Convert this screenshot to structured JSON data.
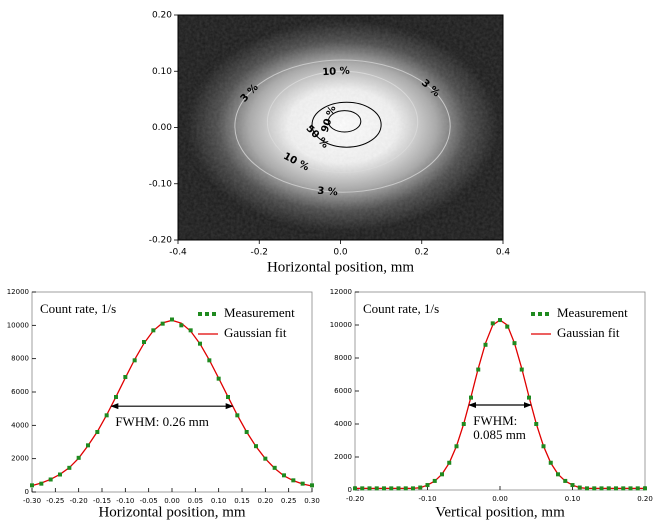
{
  "chart_data": [
    {
      "type": "heatmap",
      "xlabel": "Horizontal position, mm",
      "xlim": [
        -0.4,
        0.4
      ],
      "ylim": [
        -0.2,
        0.2
      ],
      "xticks": [
        -0.4,
        -0.2,
        {
          "value": 0,
          "label": "0.0"
        },
        0.2,
        0.4
      ],
      "yticks": [
        {
          "value": -0.2,
          "label": "-0.20"
        },
        {
          "value": -0.1,
          "label": "-0.10"
        },
        {
          "value": 0,
          "label": "0.00"
        },
        {
          "value": 0.1,
          "label": "0.10"
        },
        {
          "value": 0.2,
          "label": "0.20"
        }
      ],
      "contours": [
        {
          "value": 3,
          "label": "3 %",
          "color": "#c8c8c8",
          "x": [
            -0.26,
            0.27
          ],
          "y": [
            -0.115,
            0.12
          ]
        },
        {
          "value": 10,
          "label": "10 %",
          "color": "#d8d8d8",
          "x": [
            -0.18,
            0.19
          ],
          "y": [
            -0.08,
            0.1
          ]
        },
        {
          "value": 50,
          "label": "50 %",
          "color": "#000000",
          "x": [
            -0.07,
            0.1
          ],
          "y": [
            -0.035,
            0.045
          ]
        },
        {
          "value": 90,
          "label": "90 %",
          "color": "#000000",
          "x": [
            -0.03,
            0.05
          ],
          "y": [
            -0.008,
            0.03
          ]
        }
      ]
    },
    {
      "type": "line",
      "xlabel": "Horizontal position, mm",
      "ylabel": "Count rate, 1/s",
      "xlim": [
        -0.3,
        0.3
      ],
      "ylim": [
        0,
        12000
      ],
      "xticks": [
        {
          "value": -0.3,
          "label": "-0.30"
        },
        {
          "value": -0.25,
          "label": "-0.25"
        },
        {
          "value": -0.2,
          "label": "-0.20"
        },
        {
          "value": -0.15,
          "label": "-0.15"
        },
        {
          "value": -0.1,
          "label": "-0.10"
        },
        {
          "value": -0.05,
          "label": "-0.05"
        },
        {
          "value": 0,
          "label": "0.00"
        },
        {
          "value": 0.05,
          "label": "0.05"
        },
        {
          "value": 0.1,
          "label": "0.10"
        },
        {
          "value": 0.15,
          "label": "0.15"
        },
        {
          "value": 0.2,
          "label": "0.20"
        },
        {
          "value": 0.25,
          "label": "0.25"
        },
        {
          "value": 0.3,
          "label": "0.30"
        }
      ],
      "yticks": [
        0,
        2000,
        4000,
        6000,
        8000,
        10000,
        12000
      ],
      "x": [
        -0.3,
        -0.28,
        -0.26,
        -0.24,
        -0.22,
        -0.2,
        -0.18,
        -0.16,
        -0.14,
        -0.12,
        -0.1,
        -0.08,
        -0.06,
        -0.04,
        -0.02,
        0,
        0.02,
        0.04,
        0.06,
        0.08,
        0.1,
        0.12,
        0.14,
        0.16,
        0.18,
        0.2,
        0.22,
        0.24,
        0.26,
        0.28,
        0.3
      ],
      "series": [
        {
          "name": "Measurement",
          "color": "#1f8a1f",
          "style": "dots",
          "values": [
            400,
            500,
            750,
            1050,
            1450,
            2050,
            2800,
            3600,
            4600,
            5700,
            6900,
            7900,
            9000,
            9700,
            10100,
            10350,
            10000,
            9700,
            8900,
            7900,
            6800,
            5700,
            4600,
            3600,
            2750,
            2000,
            1450,
            1000,
            700,
            500,
            400
          ]
        },
        {
          "name": "Gaussian fit",
          "color": "#e00000",
          "style": "line",
          "values": [
            380,
            540,
            760,
            1060,
            1460,
            2030,
            2780,
            3620,
            4620,
            5720,
            6850,
            7950,
            8920,
            9680,
            10150,
            10300,
            10130,
            9650,
            8890,
            7920,
            6830,
            5710,
            4610,
            3600,
            2730,
            2000,
            1420,
            970,
            680,
            480,
            360
          ]
        }
      ],
      "fwhm": {
        "x": [
          -0.13,
          0.13
        ],
        "y": 5150,
        "text": [
          "FWHM: 0.26 mm"
        ]
      }
    },
    {
      "type": "line",
      "xlabel": "Vertical position, mm",
      "ylabel": "Count rate, 1/s",
      "xlim": [
        -0.2,
        0.2
      ],
      "ylim": [
        0,
        12000
      ],
      "xticks": [
        {
          "value": -0.2,
          "label": "-0.20"
        },
        {
          "value": -0.1,
          "label": "-0.10"
        },
        {
          "value": 0,
          "label": "0.00"
        },
        {
          "value": 0.1,
          "label": "0.10"
        },
        {
          "value": 0.2,
          "label": "0.20"
        }
      ],
      "yticks": [
        0,
        2000,
        4000,
        6000,
        8000,
        10000,
        12000
      ],
      "x": [
        -0.2,
        -0.19,
        -0.18,
        -0.17,
        -0.16,
        -0.15,
        -0.14,
        -0.13,
        -0.12,
        -0.11,
        -0.1,
        -0.09,
        -0.08,
        -0.07,
        -0.06,
        -0.05,
        -0.04,
        -0.03,
        -0.02,
        -0.01,
        0,
        0.01,
        0.02,
        0.03,
        0.04,
        0.05,
        0.06,
        0.07,
        0.08,
        0.09,
        0.1,
        0.11,
        0.12,
        0.13,
        0.14,
        0.15,
        0.16,
        0.17,
        0.18,
        0.19,
        0.2
      ],
      "series": [
        {
          "name": "Measurement",
          "color": "#1f8a1f",
          "style": "dots",
          "values": [
            100,
            100,
            100,
            100,
            100,
            100,
            100,
            100,
            100,
            150,
            300,
            550,
            950,
            1650,
            2650,
            4000,
            5600,
            7300,
            8800,
            10100,
            10300,
            9900,
            8900,
            7300,
            5600,
            4000,
            2650,
            1650,
            950,
            550,
            300,
            150,
            100,
            100,
            100,
            100,
            100,
            100,
            100,
            100,
            100
          ]
        },
        {
          "name": "Gaussian fit",
          "color": "#e00000",
          "style": "line",
          "values": [
            100,
            100,
            100,
            100,
            100,
            100,
            100,
            100,
            100,
            140,
            300,
            540,
            960,
            1640,
            2660,
            4020,
            5650,
            7370,
            8900,
            10000,
            10300,
            10000,
            8900,
            7370,
            5650,
            4020,
            2660,
            1640,
            960,
            540,
            300,
            140,
            100,
            100,
            100,
            100,
            100,
            100,
            100,
            100,
            100
          ]
        }
      ],
      "fwhm": {
        "x": [
          -0.0425,
          0.0425
        ],
        "y": 5150,
        "text": [
          "FWHM:",
          "0.085 mm"
        ]
      }
    }
  ]
}
